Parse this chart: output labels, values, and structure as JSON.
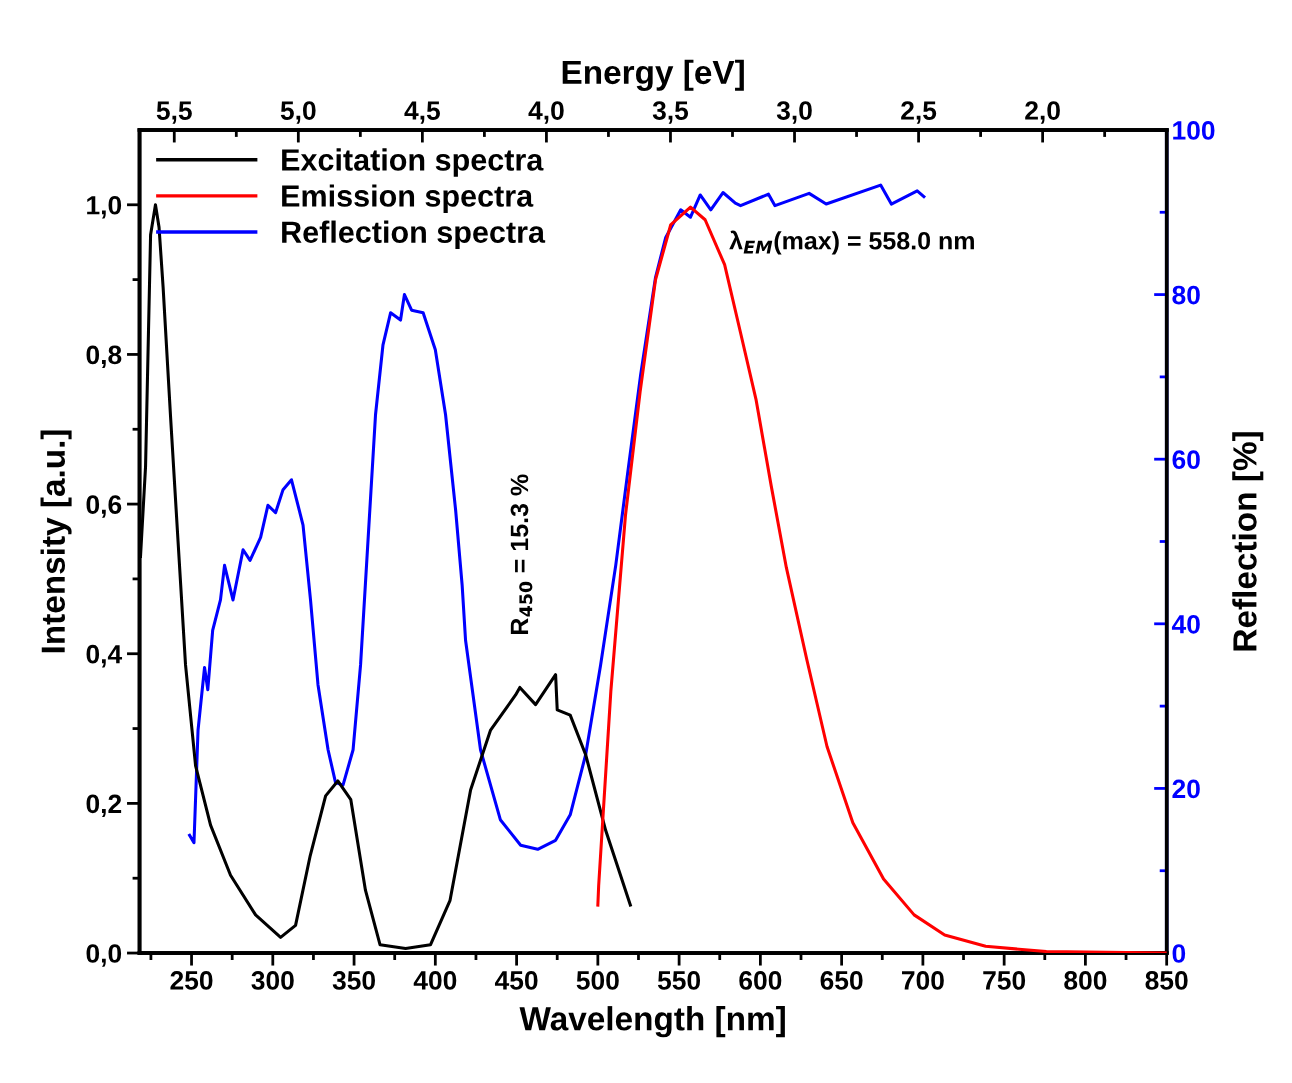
{
  "chart_data": {
    "type": "line",
    "xlabel": "Wavelength [nm]",
    "ylabel": "Intensity [a.u.]",
    "y2label": "Reflection [%]",
    "x2label": "Energy [eV]",
    "xlim": [
      218,
      850
    ],
    "ylim": [
      0,
      1.1
    ],
    "y2lim": [
      0,
      100
    ],
    "x2lim": [
      5.64,
      1.5
    ],
    "xticks": [
      {
        "value": 225,
        "label": null
      },
      250,
      {
        "value": 275,
        "label": null
      },
      300,
      {
        "value": 325,
        "label": null
      },
      350,
      {
        "value": 375,
        "label": null
      },
      400,
      {
        "value": 425,
        "label": null
      },
      450,
      {
        "value": 475,
        "label": null
      },
      500,
      {
        "value": 525,
        "label": null
      },
      550,
      {
        "value": 575,
        "label": null
      },
      600,
      {
        "value": 625,
        "label": null
      },
      650,
      {
        "value": 675,
        "label": null
      },
      700,
      {
        "value": 725,
        "label": null
      },
      750,
      {
        "value": 775,
        "label": null
      },
      800,
      {
        "value": 825,
        "label": null
      },
      850
    ],
    "yticks": [
      {
        "value": 0,
        "label": "0,0"
      },
      {
        "value": 0.1,
        "label": null
      },
      {
        "value": 0.2,
        "label": "0,2"
      },
      {
        "value": 0.3,
        "label": null
      },
      {
        "value": 0.4,
        "label": "0,4"
      },
      {
        "value": 0.5,
        "label": null
      },
      {
        "value": 0.6,
        "label": "0,6"
      },
      {
        "value": 0.7,
        "label": null
      },
      {
        "value": 0.8,
        "label": "0,8"
      },
      {
        "value": 0.9,
        "label": null
      },
      {
        "value": 1.0,
        "label": "1,0"
      }
    ],
    "y2ticks": [
      0,
      {
        "value": 10,
        "label": null
      },
      20,
      {
        "value": 30,
        "label": null
      },
      40,
      {
        "value": 50,
        "label": null
      },
      60,
      {
        "value": 70,
        "label": null
      },
      80,
      {
        "value": 90,
        "label": null
      },
      100
    ],
    "x2ticks": [
      {
        "value": 5.5,
        "label": "5,5"
      },
      {
        "value": 5.25,
        "label": null
      },
      {
        "value": 5.0,
        "label": "5,0"
      },
      {
        "value": 4.75,
        "label": null
      },
      {
        "value": 4.5,
        "label": "4,5"
      },
      {
        "value": 4.25,
        "label": null
      },
      {
        "value": 4.0,
        "label": "4,0"
      },
      {
        "value": 3.75,
        "label": null
      },
      {
        "value": 3.5,
        "label": "3,5"
      },
      {
        "value": 3.25,
        "label": null
      },
      {
        "value": 3.0,
        "label": "3,0"
      },
      {
        "value": 2.75,
        "label": null
      },
      {
        "value": 2.5,
        "label": "2,5"
      },
      {
        "value": 2.25,
        "label": null
      },
      {
        "value": 2.0,
        "label": "2,0"
      },
      {
        "value": 1.75,
        "label": null
      }
    ],
    "legend": "top left",
    "grid": false,
    "marker": "none",
    "line_style": "solid",
    "series": [
      {
        "name": "Excitation spectra",
        "color": "#000000",
        "x": [
          218.6,
          221.7,
          224.8,
          227.8,
          230,
          232.5,
          237,
          241.7,
          246.3,
          252.5,
          261.7,
          274,
          289.4,
          304.8,
          314,
          323,
          332.5,
          340,
          348,
          357,
          366,
          381.7,
          397,
          409,
          421.7,
          434,
          449.4,
          452,
          461.7,
          474,
          475,
          483,
          492.5,
          504.8,
          520
        ],
        "values": [
          0.53,
          0.65,
          0.96,
          1.0,
          0.97,
          0.89,
          0.72,
          0.55,
          0.385,
          0.25,
          0.171,
          0.104,
          0.051,
          0.021,
          0.037,
          0.13,
          0.21,
          0.23,
          0.205,
          0.084,
          0.011,
          0.006,
          0.011,
          0.07,
          0.218,
          0.298,
          0.345,
          0.355,
          0.332,
          0.372,
          0.325,
          0.318,
          0.265,
          0.164,
          0.064
        ]
      },
      {
        "name": "Emission spectra",
        "color": "#ff0000",
        "x": [
          500,
          500.5,
          508,
          517,
          526,
          535.5,
          544.8,
          557,
          566,
          578,
          587.8,
          597.3,
          606.7,
          616,
          628.6,
          641,
          656.9,
          675.8,
          694.6,
          713.4,
          738.6,
          776,
          850
        ],
        "values": [
          0.064,
          0.09,
          0.35,
          0.585,
          0.75,
          0.9,
          0.973,
          0.997,
          0.98,
          0.92,
          0.829,
          0.74,
          0.624,
          0.515,
          0.392,
          0.276,
          0.174,
          0.099,
          0.051,
          0.024,
          0.009,
          0.002,
          0.0
        ]
      },
      {
        "name": "Reflection spectra",
        "color": "#0000ff",
        "axis": "y2",
        "x": [
          248.8,
          251.5,
          254,
          258,
          260,
          263,
          267.8,
          270.3,
          275.5,
          281.7,
          286,
          292.5,
          297,
          301.7,
          306.3,
          311.5,
          318.6,
          323.2,
          327.8,
          334,
          338.6,
          343.2,
          349.4,
          354,
          358.6,
          363.2,
          367.8,
          372.5,
          378.6,
          381,
          385.4,
          392.5,
          400,
          406.3,
          412.5,
          416.5,
          418.6,
          427.8,
          440,
          452.5,
          463,
          474,
          483,
          492.5,
          501.7,
          511,
          518.6,
          526.3,
          535.5,
          541.7,
          551,
          557,
          563,
          569.5,
          577,
          584.6,
          587.8,
          605,
          609,
          630,
          640.5,
          674,
          680.6,
          696.5,
          700.6
        ],
        "values": [
          14.3,
          13.4,
          27.1,
          34.7,
          32,
          39.2,
          42.9,
          47.1,
          42.9,
          49,
          47.7,
          50.5,
          54.4,
          53.5,
          56.3,
          57.5,
          52,
          42.9,
          32.6,
          24.7,
          20.7,
          20.4,
          24.7,
          35,
          50.2,
          65.4,
          73.9,
          77.8,
          76.9,
          80,
          78.1,
          77.8,
          73.3,
          65.4,
          53.8,
          44.7,
          38,
          24.7,
          16.2,
          13.1,
          12.6,
          13.7,
          16.8,
          24.1,
          35,
          47.1,
          58.7,
          70.2,
          82.1,
          86.9,
          90.3,
          89.4,
          92.1,
          90.3,
          92.4,
          91.1,
          90.8,
          92.2,
          90.8,
          92.3,
          91,
          93.3,
          91,
          92.6,
          91.9
        ]
      }
    ],
    "annotations": [
      "λ$_{EM}$(max) = 558.0 nm",
      "R$_{450}$ = 15.3 %"
    ]
  }
}
